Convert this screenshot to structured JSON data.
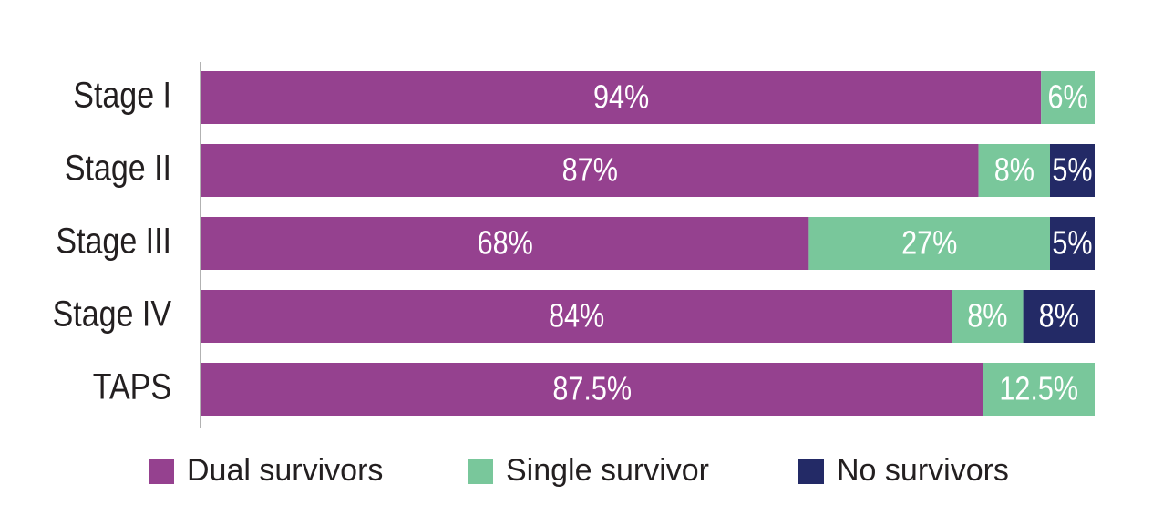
{
  "chart_data": {
    "type": "stacked-bar",
    "orientation": "horizontal",
    "categories": [
      "Stage I",
      "Stage II",
      "Stage III",
      "Stage IV",
      "TAPS"
    ],
    "xlim": [
      0,
      100
    ],
    "series": [
      {
        "name": "Dual survivors",
        "color": "#95418f",
        "values": [
          94,
          87,
          68,
          84,
          87.5
        ],
        "value_labels": [
          "94%",
          "87%",
          "68%",
          "84%",
          "87.5%"
        ]
      },
      {
        "name": "Single survivor",
        "color": "#79c79b",
        "values": [
          6,
          8,
          27,
          8,
          12.5
        ],
        "value_labels": [
          "6%",
          "8%",
          "27%",
          "8%",
          "12.5%"
        ]
      },
      {
        "name": "No survivors",
        "color": "#232a66",
        "values": [
          null,
          5,
          5,
          8,
          null
        ],
        "value_labels": [
          null,
          "5%",
          "5%",
          "8%",
          null
        ]
      }
    ]
  }
}
